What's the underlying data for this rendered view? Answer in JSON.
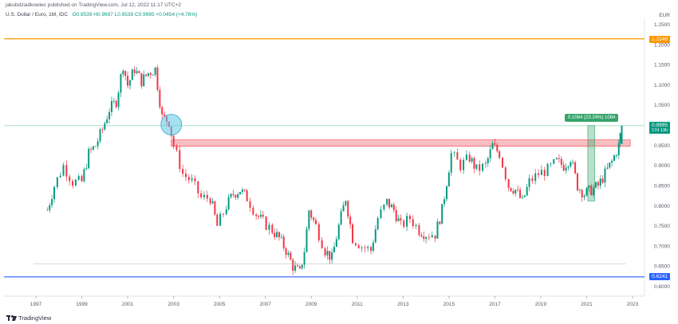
{
  "header": {
    "attribution": "jakubdziadkowiec published on TradingView.com, Jul 12, 2022 11:17 UTC+2",
    "symbol": "U.S. Dollar / Euro, 1M, IDC",
    "open": "O0.9539",
    "high": "H0.9997",
    "low": "L0.9539",
    "close": "C0.9995",
    "change": "+0.0454 (+4.76%)"
  },
  "axis": {
    "currency": "EUR"
  },
  "price_labels": {
    "top_line": "1.2149",
    "bottom_line": "0.6241",
    "last": "0.9995",
    "countdown": "17d 13h"
  },
  "measure_label": "0.1084 (23.24%) 1084",
  "brand": {
    "name": "TradingView"
  },
  "colors": {
    "up": "#089981",
    "down": "#f23645",
    "top_line": "#ff9800",
    "bottom_line": "#2962ff",
    "zone": "#f7a8ae",
    "circle": "#5bc8e6",
    "measure": "#35a36a"
  },
  "chart_data": {
    "type": "candlestick",
    "timeframe": "1M",
    "x_ticks": [
      "1997",
      "1999",
      "2001",
      "2003",
      "2005",
      "2007",
      "2009",
      "2011",
      "2013",
      "2015",
      "2017",
      "2019",
      "2021",
      "2023"
    ],
    "y_ticks": [
      "1.2500",
      "1.2000",
      "1.1500",
      "1.1000",
      "1.0500",
      "0.9500",
      "0.9000",
      "0.8500",
      "0.8000",
      "0.7500",
      "0.7000",
      "0.6500",
      "0.6000"
    ],
    "ylim": [
      0.59,
      1.27
    ],
    "xlim": [
      1996.5,
      2023.5
    ],
    "horizontal_lines": [
      1.2149,
      0.6241,
      0.9995,
      0.656
    ],
    "resistance_zone": [
      0.948,
      0.964
    ],
    "series_close": [
      [
        1997.5,
        0.79
      ],
      [
        1997.8,
        0.85
      ],
      [
        1998.2,
        0.9
      ],
      [
        1998.6,
        0.86
      ],
      [
        1999.0,
        0.86
      ],
      [
        1999.3,
        0.93
      ],
      [
        1999.6,
        0.95
      ],
      [
        1999.9,
        0.99
      ],
      [
        2000.2,
        1.04
      ],
      [
        2000.5,
        1.06
      ],
      [
        2000.8,
        1.15
      ],
      [
        2001.0,
        1.1
      ],
      [
        2001.3,
        1.14
      ],
      [
        2001.6,
        1.11
      ],
      [
        2001.9,
        1.13
      ],
      [
        2002.2,
        1.14
      ],
      [
        2002.5,
        1.02
      ],
      [
        2002.8,
        1.01
      ],
      [
        2003.0,
        0.95
      ],
      [
        2003.4,
        0.88
      ],
      [
        2003.8,
        0.86
      ],
      [
        2004.2,
        0.82
      ],
      [
        2004.6,
        0.82
      ],
      [
        2004.9,
        0.75
      ],
      [
        2005.3,
        0.8
      ],
      [
        2005.6,
        0.83
      ],
      [
        2005.9,
        0.84
      ],
      [
        2006.2,
        0.82
      ],
      [
        2006.6,
        0.78
      ],
      [
        2006.9,
        0.76
      ],
      [
        2007.3,
        0.74
      ],
      [
        2007.6,
        0.72
      ],
      [
        2007.9,
        0.69
      ],
      [
        2008.2,
        0.65
      ],
      [
        2008.5,
        0.634
      ],
      [
        2008.7,
        0.69
      ],
      [
        2008.9,
        0.79
      ],
      [
        2009.2,
        0.75
      ],
      [
        2009.6,
        0.69
      ],
      [
        2009.9,
        0.67
      ],
      [
        2010.2,
        0.75
      ],
      [
        2010.5,
        0.82
      ],
      [
        2010.8,
        0.72
      ],
      [
        2011.2,
        0.7
      ],
      [
        2011.6,
        0.69
      ],
      [
        2011.9,
        0.77
      ],
      [
        2012.3,
        0.81
      ],
      [
        2012.6,
        0.79
      ],
      [
        2012.9,
        0.75
      ],
      [
        2013.3,
        0.77
      ],
      [
        2013.7,
        0.74
      ],
      [
        2014.0,
        0.73
      ],
      [
        2014.4,
        0.73
      ],
      [
        2014.7,
        0.79
      ],
      [
        2014.9,
        0.86
      ],
      [
        2015.1,
        0.93
      ],
      [
        2015.5,
        0.9
      ],
      [
        2015.9,
        0.92
      ],
      [
        2016.2,
        0.89
      ],
      [
        2016.6,
        0.9
      ],
      [
        2016.9,
        0.95
      ],
      [
        2017.2,
        0.93
      ],
      [
        2017.6,
        0.85
      ],
      [
        2017.9,
        0.84
      ],
      [
        2018.2,
        0.81
      ],
      [
        2018.5,
        0.86
      ],
      [
        2018.9,
        0.88
      ],
      [
        2019.3,
        0.89
      ],
      [
        2019.7,
        0.91
      ],
      [
        2020.0,
        0.9
      ],
      [
        2020.3,
        0.92
      ],
      [
        2020.6,
        0.85
      ],
      [
        2020.9,
        0.83
      ],
      [
        2021.2,
        0.84
      ],
      [
        2021.5,
        0.85
      ],
      [
        2021.8,
        0.88
      ],
      [
        2022.1,
        0.91
      ],
      [
        2022.4,
        0.95
      ],
      [
        2022.53,
        0.9995
      ]
    ]
  }
}
